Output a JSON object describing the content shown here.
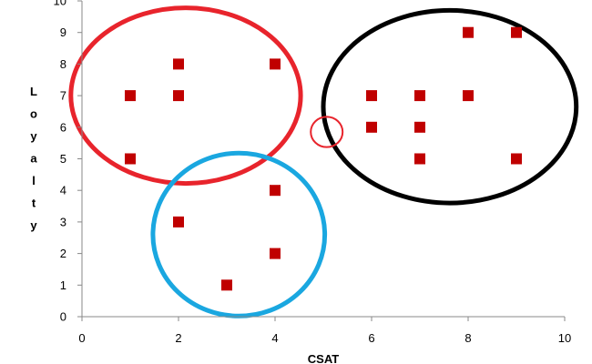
{
  "chart_data": {
    "type": "scatter",
    "xlabel": "CSAT",
    "ylabel": "Loyalty",
    "xlim": [
      0,
      10
    ],
    "ylim": [
      0,
      10
    ],
    "x_ticks": [
      0,
      2,
      4,
      6,
      8,
      10
    ],
    "y_ticks": [
      0,
      1,
      2,
      3,
      4,
      5,
      6,
      7,
      8,
      9,
      10
    ],
    "grid": false,
    "marker_color": "#c00000",
    "series": [
      {
        "points": [
          {
            "x": 1,
            "y": 7
          },
          {
            "x": 1,
            "y": 5
          },
          {
            "x": 2,
            "y": 8
          },
          {
            "x": 2,
            "y": 7
          },
          {
            "x": 4,
            "y": 8
          },
          {
            "x": 2,
            "y": 3
          },
          {
            "x": 4,
            "y": 4
          },
          {
            "x": 4,
            "y": 2
          },
          {
            "x": 3,
            "y": 1
          },
          {
            "x": 6,
            "y": 7
          },
          {
            "x": 6,
            "y": 6
          },
          {
            "x": 7,
            "y": 7
          },
          {
            "x": 7,
            "y": 6
          },
          {
            "x": 7,
            "y": 5
          },
          {
            "x": 8,
            "y": 9
          },
          {
            "x": 8,
            "y": 7
          },
          {
            "x": 9,
            "y": 9
          },
          {
            "x": 9,
            "y": 5
          }
        ]
      }
    ],
    "annotations": [
      {
        "shape": "ellipse",
        "color": "#e8242c",
        "cx": 2.15,
        "cy": 7.0,
        "rx": 2.38,
        "ry": 2.78
      },
      {
        "shape": "ellipse",
        "color": "#1aa7e0",
        "cx": 3.25,
        "cy": 2.6,
        "rx": 1.78,
        "ry": 2.58
      },
      {
        "shape": "ellipse",
        "color": "#000000",
        "cx": 7.62,
        "cy": 6.65,
        "rx": 2.62,
        "ry": 3.05
      },
      {
        "shape": "ellipse",
        "color": "#e8242c",
        "cx": 5.07,
        "cy": 5.85,
        "rx": 0.33,
        "ry": 0.48
      }
    ]
  }
}
